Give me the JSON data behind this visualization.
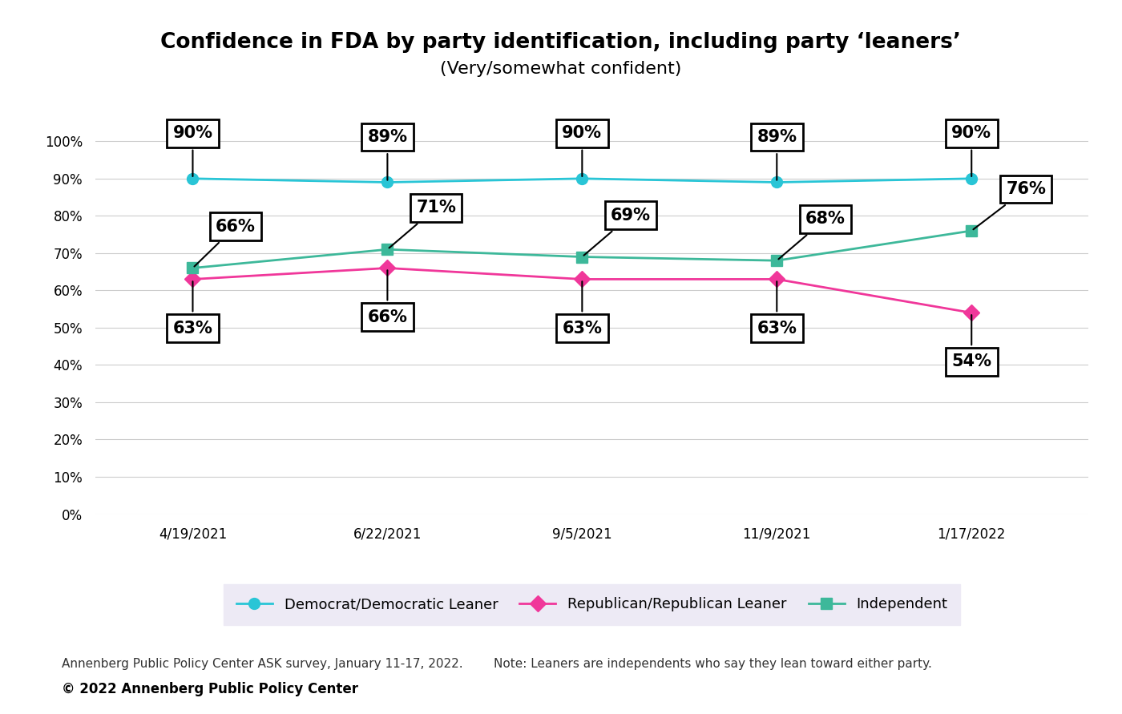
{
  "title_line1": "Confidence in FDA by party identification, including party ‘leaners’",
  "title_line2": "(Very/somewhat confident)",
  "x_labels": [
    "4/19/2021",
    "6/22/2021",
    "9/5/2021",
    "11/9/2021",
    "1/17/2022"
  ],
  "x_positions": [
    0,
    1,
    2,
    3,
    4
  ],
  "democrat": [
    90,
    89,
    90,
    89,
    90
  ],
  "republican": [
    63,
    66,
    63,
    63,
    54
  ],
  "independent": [
    66,
    71,
    69,
    68,
    76
  ],
  "democrat_color": "#29C5D6",
  "republican_color": "#F0379A",
  "independent_color": "#3DB89A",
  "democrat_label": "Democrat/Democratic Leaner",
  "republican_label": "Republican/Republican Leaner",
  "independent_label": "Independent",
  "y_ticks": [
    0,
    10,
    20,
    30,
    40,
    50,
    60,
    70,
    80,
    90,
    100
  ],
  "y_tick_labels": [
    "0%",
    "10%",
    "20%",
    "30%",
    "40%",
    "50%",
    "60%",
    "70%",
    "80%",
    "90%",
    "100%"
  ],
  "ylim": [
    0,
    113
  ],
  "footnote_left": "Annenberg Public Policy Center ASK survey, January 11-17, 2022.",
  "footnote_right": "Note: Leaners are independents who say they lean toward either party.",
  "copyright": "© 2022 Annenberg Public Policy Center",
  "background_color": "#ffffff",
  "legend_bg_color": "#edeaf5",
  "grid_color": "#cccccc",
  "title_fontsize": 19,
  "subtitle_fontsize": 16,
  "tick_fontsize": 12,
  "label_fontsize": 13,
  "annotation_fontsize": 15,
  "footnote_fontsize": 11
}
